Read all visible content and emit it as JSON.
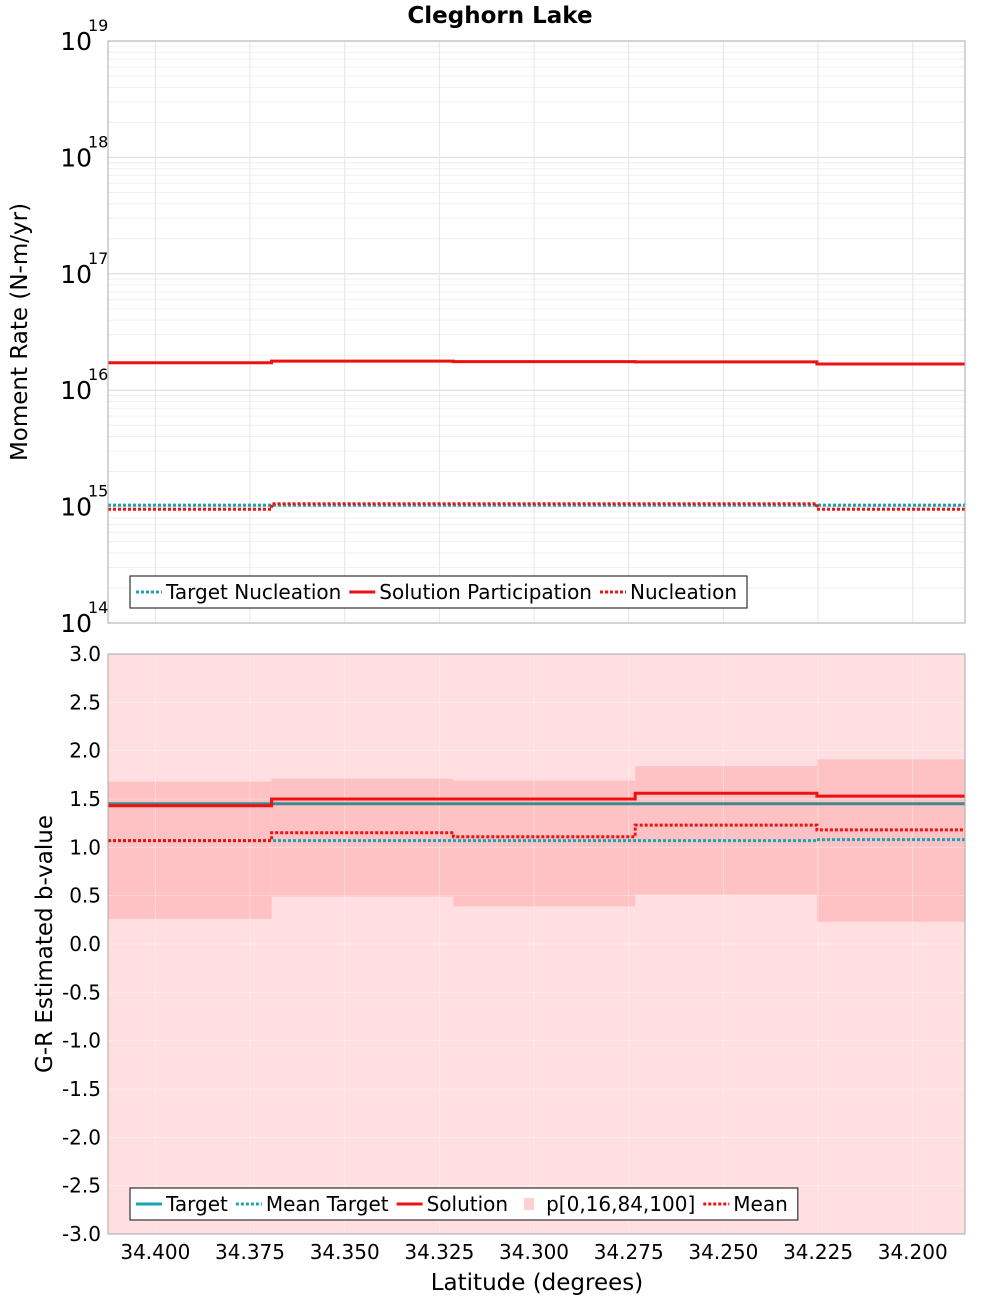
{
  "title": "Cleghorn Lake",
  "chart_data": [
    {
      "type": "line",
      "ylabel": "Moment Rate (N-m/yr)",
      "xlabel": "",
      "yscale": "log",
      "ylim": [
        100000000000000.0,
        1e+19
      ],
      "xlim": [
        34.4125,
        34.1862
      ],
      "x_reversed": true,
      "grid": true,
      "y_tick_labels": [
        {
          "value": 100000000000000.0,
          "base": "10",
          "exp": "14"
        },
        {
          "value": 1000000000000000.0,
          "base": "10",
          "exp": "15"
        },
        {
          "value": 1e+16,
          "base": "10",
          "exp": "16"
        },
        {
          "value": 1e+17,
          "base": "10",
          "exp": "17"
        },
        {
          "value": 1e+18,
          "base": "10",
          "exp": "18"
        },
        {
          "value": 1e+19,
          "base": "10",
          "exp": "19"
        }
      ],
      "bin_edges": [
        34.4125,
        34.3693,
        34.3213,
        34.2733,
        34.2253,
        34.1862
      ],
      "legend_position": "bottom-left",
      "series": [
        {
          "name": "Target Nucleation",
          "style": "dotted",
          "color": "#1aa6b0",
          "values": [
            1030000000000000.0,
            1030000000000000.0,
            1030000000000000.0,
            1030000000000000.0,
            1030000000000000.0
          ]
        },
        {
          "name": "Solution Participation",
          "style": "solid",
          "color": "#ee1111",
          "values": [
            1.72e+16,
            1.78e+16,
            1.76e+16,
            1.75e+16,
            1.68e+16
          ]
        },
        {
          "name": "Nucleation",
          "style": "dotted",
          "color": "#ee1111",
          "values": [
            950000000000000.0,
            1060000000000000.0,
            1060000000000000.0,
            1060000000000000.0,
            950000000000000.0
          ]
        }
      ]
    },
    {
      "type": "line",
      "ylabel": "G-R Estimated b-value",
      "xlabel": "Latitude (degrees)",
      "ylim": [
        -3.0,
        3.0
      ],
      "xlim": [
        34.4125,
        34.1862
      ],
      "x_reversed": true,
      "grid": true,
      "y_ticks": [
        "3.0",
        "2.5",
        "2.0",
        "1.5",
        "1.0",
        "0.5",
        "0.0",
        "-0.5",
        "-1.0",
        "-1.5",
        "-2.0",
        "-2.5",
        "-3.0"
      ],
      "x_ticks": [
        "34.400",
        "34.375",
        "34.350",
        "34.325",
        "34.300",
        "34.275",
        "34.250",
        "34.225",
        "34.200"
      ],
      "bin_edges": [
        34.4125,
        34.3693,
        34.3213,
        34.2733,
        34.2253,
        34.1862
      ],
      "legend_position": "bottom-left",
      "bands": {
        "name": "p[0,16,84,100]",
        "color": "#ff9a9a",
        "outer": [
          [
            -3.0,
            3.0
          ],
          [
            -3.0,
            3.0
          ],
          [
            -3.0,
            3.0
          ],
          [
            -3.0,
            3.0
          ],
          [
            -3.0,
            3.0
          ]
        ],
        "inner": [
          [
            0.26,
            1.68
          ],
          [
            0.49,
            1.71
          ],
          [
            0.39,
            1.69
          ],
          [
            0.51,
            1.84
          ],
          [
            0.23,
            1.91
          ]
        ]
      },
      "series": [
        {
          "name": "Target",
          "style": "solid",
          "color": "#1aa6b0",
          "values": [
            1.45,
            1.45,
            1.45,
            1.45,
            1.45
          ]
        },
        {
          "name": "Mean Target",
          "style": "dotted",
          "color": "#1aa6b0",
          "values": [
            1.07,
            1.07,
            1.07,
            1.07,
            1.08
          ]
        },
        {
          "name": "Solution",
          "style": "solid",
          "color": "#ee1111",
          "values": [
            1.43,
            1.5,
            1.5,
            1.56,
            1.53
          ]
        },
        {
          "name": "Mean",
          "style": "dotted",
          "color": "#ee1111",
          "values": [
            1.07,
            1.15,
            1.11,
            1.23,
            1.18
          ]
        }
      ],
      "legend_order": [
        "Target",
        "Mean Target",
        "Solution",
        "p[0,16,84,100]",
        "Mean"
      ]
    }
  ]
}
